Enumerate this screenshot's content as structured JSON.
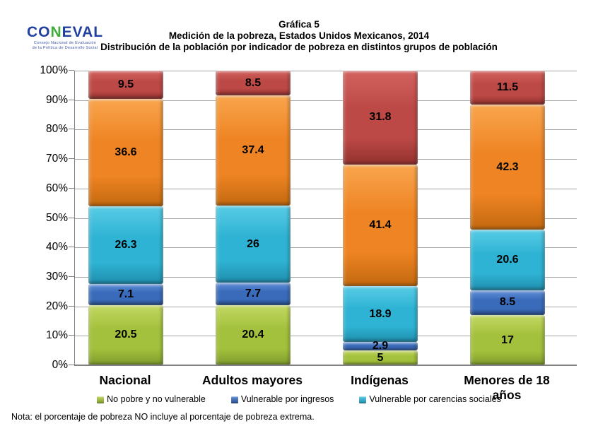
{
  "logo": {
    "word_left": "CO",
    "word_n": "N",
    "word_right": "EVAL",
    "sub_line1": "Consejo Nacional de Evaluación",
    "sub_line2": "de la Política de Desarrollo Social"
  },
  "title": {
    "line1": "Gráfica 5",
    "line2": "Medición de la pobreza, Estados Unidos Mexicanos, 2014",
    "line3": "Distribución de la población por indicador de pobreza en distintos grupos de población"
  },
  "note": "Nota: el porcentaje de pobreza NO incluye al porcentaje de pobreza extrema.",
  "chart_data": {
    "type": "bar",
    "stacked": true,
    "grid": true,
    "legend_position": "bottom",
    "ylim": [
      0,
      100
    ],
    "ytick_step": 10,
    "ytick_labels": [
      "0%",
      "10%",
      "20%",
      "30%",
      "40%",
      "50%",
      "60%",
      "70%",
      "80%",
      "90%",
      "100%"
    ],
    "categories": [
      "Nacional",
      "Adultos mayores",
      "Indígenas",
      "Menores de 18 años"
    ],
    "series": [
      {
        "name": "No pobre y no vulnerable",
        "values": [
          20.5,
          20.4,
          5,
          17
        ],
        "labels": [
          "20.5",
          "20.4",
          "5",
          "17"
        ],
        "color": "#A3C13C",
        "color_light": "#C3D862",
        "color_dark": "#7E9A2C",
        "in_legend": true
      },
      {
        "name": "Vulnerable por ingresos",
        "values": [
          7.1,
          7.7,
          2.9,
          8.5
        ],
        "labels": [
          "7.1",
          "7.7",
          "2.9",
          "8.5"
        ],
        "color": "#3A6BBB",
        "color_light": "#6090D8",
        "color_dark": "#28508F",
        "in_legend": true
      },
      {
        "name": "Vulnerable por carencias sociales",
        "values": [
          26.3,
          26,
          18.9,
          20.6
        ],
        "labels": [
          "26.3",
          "26",
          "18.9",
          "20.6"
        ],
        "color": "#2FB3D4",
        "color_light": "#58CCE6",
        "color_dark": "#1F8DAC",
        "in_legend": true
      },
      {
        "name": "",
        "values": [
          36.6,
          37.4,
          41.4,
          42.3
        ],
        "labels": [
          "36.6",
          "37.4",
          "41.4",
          "42.3"
        ],
        "color": "#EE8423",
        "color_light": "#F9A54E",
        "color_dark": "#C2680F",
        "in_legend": false
      },
      {
        "name": "",
        "values": [
          9.5,
          8.5,
          31.8,
          11.5
        ],
        "labels": [
          "9.5",
          "8.5",
          "31.8",
          "11.5"
        ],
        "color": "#BC4946",
        "color_light": "#D3625E",
        "color_dark": "#93312E",
        "in_legend": false
      }
    ]
  }
}
